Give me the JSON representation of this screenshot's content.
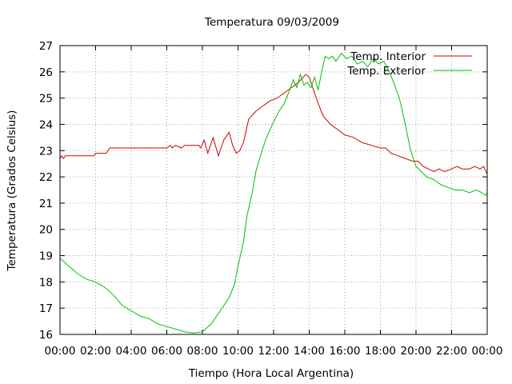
{
  "chart_data": {
    "type": "line",
    "title": "Temperatura 09/03/2009",
    "xlabel": "Tiempo (Hora Local Argentina)",
    "ylabel": "Temperatura (Grados Celsius)",
    "xlim": [
      0,
      24
    ],
    "ylim": [
      16,
      27
    ],
    "x_ticks": [
      0,
      2,
      4,
      6,
      8,
      10,
      12,
      14,
      16,
      18,
      20,
      22,
      24
    ],
    "x_tick_labels": [
      "00:00",
      "02:00",
      "04:00",
      "06:00",
      "08:00",
      "10:00",
      "12:00",
      "14:00",
      "16:00",
      "18:00",
      "20:00",
      "22:00",
      "00:00"
    ],
    "y_ticks": [
      16,
      17,
      18,
      19,
      20,
      21,
      22,
      23,
      24,
      25,
      26,
      27
    ],
    "y_tick_labels": [
      "16",
      "17",
      "18",
      "19",
      "20",
      "21",
      "22",
      "23",
      "24",
      "25",
      "26",
      "27"
    ],
    "grid": true,
    "legend_position": "top-right",
    "series": [
      {
        "name": "Temp. Interior",
        "color": "#cc0000",
        "x": [
          0,
          0.1,
          0.2,
          0.3,
          1,
          1.9,
          2,
          2.6,
          2.8,
          4,
          5,
          6,
          6.2,
          6.3,
          6.5,
          6.8,
          7,
          7.5,
          7.8,
          7.9,
          8.1,
          8.3,
          8.6,
          8.9,
          9.2,
          9.5,
          9.7,
          9.9,
          10.1,
          10.3,
          10.6,
          11,
          11.4,
          11.8,
          12.2,
          12.6,
          13,
          13.4,
          13.8,
          14.0,
          14.2,
          14.5,
          14.8,
          15.2,
          15.6,
          16,
          16.5,
          17,
          17.5,
          18,
          18.3,
          18.6,
          19,
          19.4,
          19.8,
          20.1,
          20.4,
          20.7,
          21,
          21.3,
          21.6,
          22,
          22.3,
          22.6,
          23,
          23.3,
          23.6,
          23.8,
          24
        ],
        "y": [
          22.7,
          22.8,
          22.7,
          22.8,
          22.8,
          22.8,
          22.9,
          22.9,
          23.1,
          23.1,
          23.1,
          23.1,
          23.2,
          23.1,
          23.2,
          23.1,
          23.2,
          23.2,
          23.2,
          23.1,
          23.4,
          22.9,
          23.5,
          22.8,
          23.4,
          23.7,
          23.2,
          22.9,
          23.0,
          23.3,
          24.2,
          24.5,
          24.7,
          24.9,
          25.0,
          25.2,
          25.4,
          25.6,
          25.9,
          25.8,
          25.4,
          24.8,
          24.3,
          24.0,
          23.8,
          23.6,
          23.5,
          23.3,
          23.2,
          23.1,
          23.1,
          22.9,
          22.8,
          22.7,
          22.6,
          22.6,
          22.4,
          22.3,
          22.2,
          22.3,
          22.2,
          22.3,
          22.4,
          22.3,
          22.3,
          22.4,
          22.3,
          22.4,
          22.1
        ]
      },
      {
        "name": "Temp. Exterior",
        "color": "#00c000",
        "x": [
          0,
          0.5,
          1,
          1.5,
          2,
          2.5,
          3,
          3.5,
          4,
          4.5,
          5,
          5.5,
          6,
          6.5,
          7,
          7.5,
          8,
          8.5,
          9,
          9.5,
          9.8,
          10,
          10.3,
          10.5,
          10.8,
          11,
          11.3,
          11.6,
          12,
          12.3,
          12.6,
          12.9,
          13.1,
          13.3,
          13.5,
          13.7,
          13.9,
          14.1,
          14.3,
          14.5,
          14.7,
          14.9,
          15.1,
          15.3,
          15.5,
          15.8,
          16.1,
          16.4,
          16.7,
          17,
          17.3,
          17.6,
          17.9,
          18.2,
          18.5,
          18.8,
          19.1,
          19.4,
          19.7,
          20,
          20.3,
          20.6,
          21,
          21.4,
          21.8,
          22.2,
          22.6,
          23,
          23.4,
          23.7,
          23.9,
          24
        ],
        "y": [
          18.9,
          18.6,
          18.3,
          18.1,
          18.0,
          17.8,
          17.5,
          17.1,
          16.9,
          16.7,
          16.6,
          16.4,
          16.3,
          16.2,
          16.1,
          16.05,
          16.1,
          16.4,
          16.9,
          17.4,
          17.9,
          18.6,
          19.5,
          20.5,
          21.4,
          22.2,
          22.9,
          23.5,
          24.1,
          24.5,
          24.8,
          25.3,
          25.7,
          25.4,
          25.9,
          25.5,
          25.6,
          25.4,
          25.8,
          25.3,
          26.0,
          26.6,
          26.5,
          26.6,
          26.4,
          26.7,
          26.5,
          26.6,
          26.3,
          26.4,
          26.2,
          26.5,
          26.3,
          26.4,
          26.0,
          25.5,
          24.9,
          24.0,
          23.0,
          22.4,
          22.2,
          22.0,
          21.9,
          21.7,
          21.6,
          21.5,
          21.5,
          21.4,
          21.5,
          21.4,
          21.3,
          21.4
        ]
      }
    ]
  }
}
